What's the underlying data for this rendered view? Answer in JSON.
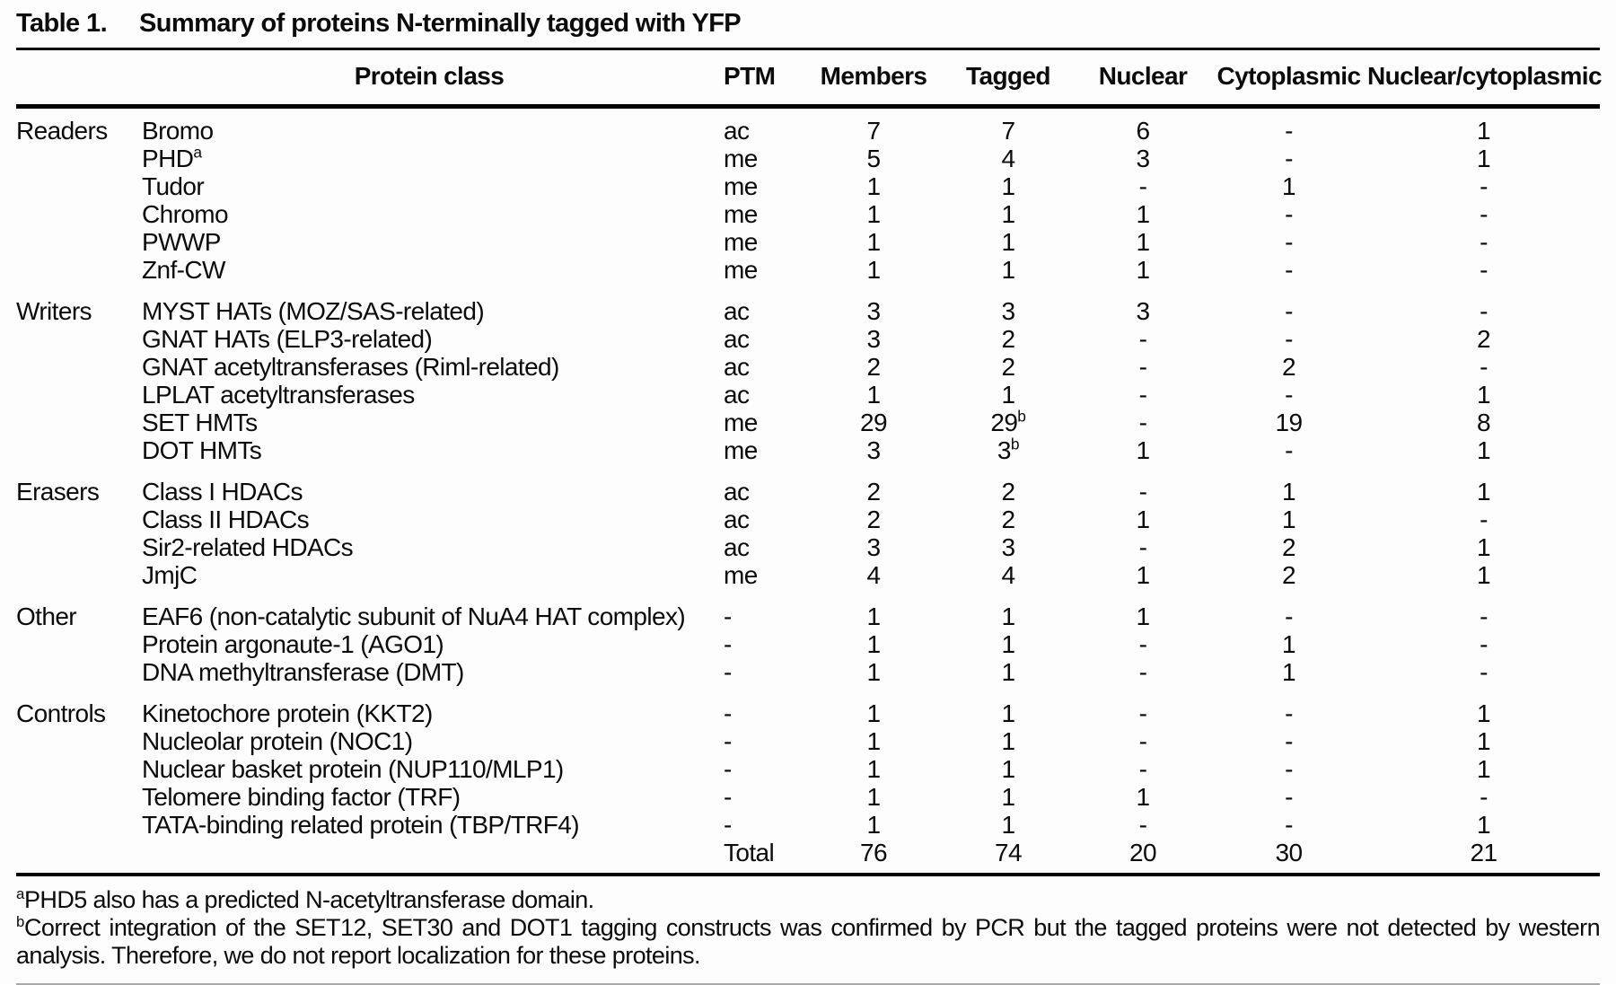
{
  "caption": {
    "label": "Table 1.",
    "title": "Summary of proteins N-terminally tagged with YFP"
  },
  "columns": {
    "protein_class": "Protein class",
    "ptm": "PTM",
    "members": "Members",
    "tagged": "Tagged",
    "nuclear": "Nuclear",
    "cytoplasmic": "Cytoplasmic",
    "nuclear_cytoplasmic": "Nuclear/cytoplasmic"
  },
  "sections": [
    {
      "group": "Readers",
      "rows": [
        {
          "name": "Bromo",
          "ptm": "ac",
          "members": "7",
          "tagged": "7",
          "nuclear": "6",
          "cytoplasmic": "-",
          "nuclear_cytoplasmic": "1"
        },
        {
          "name": "PHD",
          "name_sup": "a",
          "ptm": "me",
          "members": "5",
          "tagged": "4",
          "nuclear": "3",
          "cytoplasmic": "-",
          "nuclear_cytoplasmic": "1"
        },
        {
          "name": "Tudor",
          "ptm": "me",
          "members": "1",
          "tagged": "1",
          "nuclear": "-",
          "cytoplasmic": "1",
          "nuclear_cytoplasmic": "-"
        },
        {
          "name": "Chromo",
          "ptm": "me",
          "members": "1",
          "tagged": "1",
          "nuclear": "1",
          "cytoplasmic": "-",
          "nuclear_cytoplasmic": "-"
        },
        {
          "name": "PWWP",
          "ptm": "me",
          "members": "1",
          "tagged": "1",
          "nuclear": "1",
          "cytoplasmic": "-",
          "nuclear_cytoplasmic": "-"
        },
        {
          "name": "Znf-CW",
          "ptm": "me",
          "members": "1",
          "tagged": "1",
          "nuclear": "1",
          "cytoplasmic": "-",
          "nuclear_cytoplasmic": "-"
        }
      ]
    },
    {
      "group": "Writers",
      "rows": [
        {
          "name": "MYST HATs (MOZ/SAS-related)",
          "ptm": "ac",
          "members": "3",
          "tagged": "3",
          "nuclear": "3",
          "cytoplasmic": "-",
          "nuclear_cytoplasmic": "-"
        },
        {
          "name": "GNAT HATs (ELP3-related)",
          "ptm": "ac",
          "members": "3",
          "tagged": "2",
          "nuclear": "-",
          "cytoplasmic": "-",
          "nuclear_cytoplasmic": "2"
        },
        {
          "name": "GNAT acetyltransferases (Riml-related)",
          "ptm": "ac",
          "members": "2",
          "tagged": "2",
          "nuclear": "-",
          "cytoplasmic": "2",
          "nuclear_cytoplasmic": "-"
        },
        {
          "name": "LPLAT acetyltransferases",
          "ptm": "ac",
          "members": "1",
          "tagged": "1",
          "nuclear": "-",
          "cytoplasmic": "-",
          "nuclear_cytoplasmic": "1"
        },
        {
          "name": "SET HMTs",
          "ptm": "me",
          "members": "29",
          "tagged": "29",
          "tagged_sup": "b",
          "nuclear": "-",
          "cytoplasmic": "19",
          "nuclear_cytoplasmic": "8"
        },
        {
          "name": "DOT HMTs",
          "ptm": "me",
          "members": "3",
          "tagged": "3",
          "tagged_sup": "b",
          "nuclear": "1",
          "cytoplasmic": "-",
          "nuclear_cytoplasmic": "1"
        }
      ]
    },
    {
      "group": "Erasers",
      "rows": [
        {
          "name": "Class I HDACs",
          "ptm": "ac",
          "members": "2",
          "tagged": "2",
          "nuclear": "-",
          "cytoplasmic": "1",
          "nuclear_cytoplasmic": "1"
        },
        {
          "name": "Class II HDACs",
          "ptm": "ac",
          "members": "2",
          "tagged": "2",
          "nuclear": "1",
          "cytoplasmic": "1",
          "nuclear_cytoplasmic": "-"
        },
        {
          "name": "Sir2-related HDACs",
          "ptm": "ac",
          "members": "3",
          "tagged": "3",
          "nuclear": "-",
          "cytoplasmic": "2",
          "nuclear_cytoplasmic": "1"
        },
        {
          "name": "JmjC",
          "ptm": "me",
          "members": "4",
          "tagged": "4",
          "nuclear": "1",
          "cytoplasmic": "2",
          "nuclear_cytoplasmic": "1"
        }
      ]
    },
    {
      "group": "Other",
      "rows": [
        {
          "name": "EAF6 (non-catalytic subunit of NuA4 HAT complex)",
          "ptm": "-",
          "members": "1",
          "tagged": "1",
          "nuclear": "1",
          "cytoplasmic": "-",
          "nuclear_cytoplasmic": "-"
        },
        {
          "name": "Protein argonaute-1 (AGO1)",
          "ptm": "-",
          "members": "1",
          "tagged": "1",
          "nuclear": "-",
          "cytoplasmic": "1",
          "nuclear_cytoplasmic": "-"
        },
        {
          "name": "DNA methyltransferase (DMT)",
          "ptm": "-",
          "members": "1",
          "tagged": "1",
          "nuclear": "-",
          "cytoplasmic": "1",
          "nuclear_cytoplasmic": "-"
        }
      ]
    },
    {
      "group": "Controls",
      "rows": [
        {
          "name": "Kinetochore protein (KKT2)",
          "ptm": "-",
          "members": "1",
          "tagged": "1",
          "nuclear": "-",
          "cytoplasmic": "-",
          "nuclear_cytoplasmic": "1"
        },
        {
          "name": "Nucleolar protein (NOC1)",
          "ptm": "-",
          "members": "1",
          "tagged": "1",
          "nuclear": "-",
          "cytoplasmic": "-",
          "nuclear_cytoplasmic": "1"
        },
        {
          "name": "Nuclear basket protein (NUP110/MLP1)",
          "ptm": "-",
          "members": "1",
          "tagged": "1",
          "nuclear": "-",
          "cytoplasmic": "-",
          "nuclear_cytoplasmic": "1"
        },
        {
          "name": "Telomere binding factor (TRF)",
          "ptm": "-",
          "members": "1",
          "tagged": "1",
          "nuclear": "1",
          "cytoplasmic": "-",
          "nuclear_cytoplasmic": "-"
        },
        {
          "name": "TATA-binding related protein (TBP/TRF4)",
          "ptm": "-",
          "members": "1",
          "tagged": "1",
          "nuclear": "-",
          "cytoplasmic": "-",
          "nuclear_cytoplasmic": "1"
        }
      ]
    }
  ],
  "total_row": {
    "label": "Total",
    "members": "76",
    "tagged": "74",
    "nuclear": "20",
    "cytoplasmic": "30",
    "nuclear_cytoplasmic": "21"
  },
  "footnotes": [
    {
      "marker": "a",
      "text": "PHD5 also has a predicted N-acetyltransferase domain."
    },
    {
      "marker": "b",
      "text": "Correct integration of the SET12, SET30 and DOT1 tagging constructs was confirmed by PCR but the tagged proteins were not detected by western analysis. Therefore, we do not report localization for these proteins."
    }
  ],
  "colors": {
    "text": "#0b0b0b",
    "background": "#fdfdfd",
    "rule": "#000000",
    "faint_rule": "#a9a9a9"
  }
}
